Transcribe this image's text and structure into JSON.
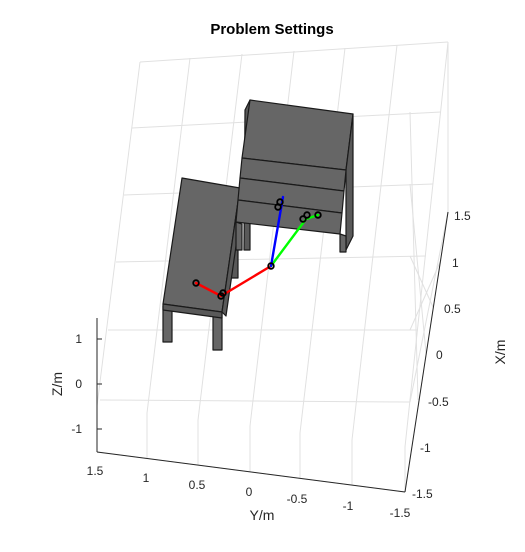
{
  "chart_data": {
    "type": "3d-scene",
    "title": "Problem Settings",
    "xlabel": "Y/m",
    "ylabel": "X/m",
    "zlabel": "Z/m",
    "y_axis": {
      "ticks": [
        "1.5",
        "1",
        "0.5",
        "0",
        "-0.5",
        "-1",
        "-1.5"
      ],
      "range": [
        -1.5,
        1.5
      ]
    },
    "x_axis": {
      "ticks": [
        "1.5",
        "1",
        "0.5",
        "0",
        "-0.5",
        "-1",
        "-1.5"
      ],
      "range": [
        -1.5,
        1.5
      ]
    },
    "z_axis": {
      "ticks": [
        "1",
        "0",
        "-1"
      ],
      "range": [
        -1.2,
        1.2
      ]
    },
    "grid": true,
    "objects": [
      {
        "name": "table",
        "kind": "box-furniture"
      },
      {
        "name": "shelf",
        "kind": "box-furniture"
      }
    ],
    "robot_links": [
      {
        "name": "link-red",
        "color": "#ff0000"
      },
      {
        "name": "link-green",
        "color": "#00ff00"
      },
      {
        "name": "link-blue",
        "color": "#0000ff"
      }
    ]
  }
}
